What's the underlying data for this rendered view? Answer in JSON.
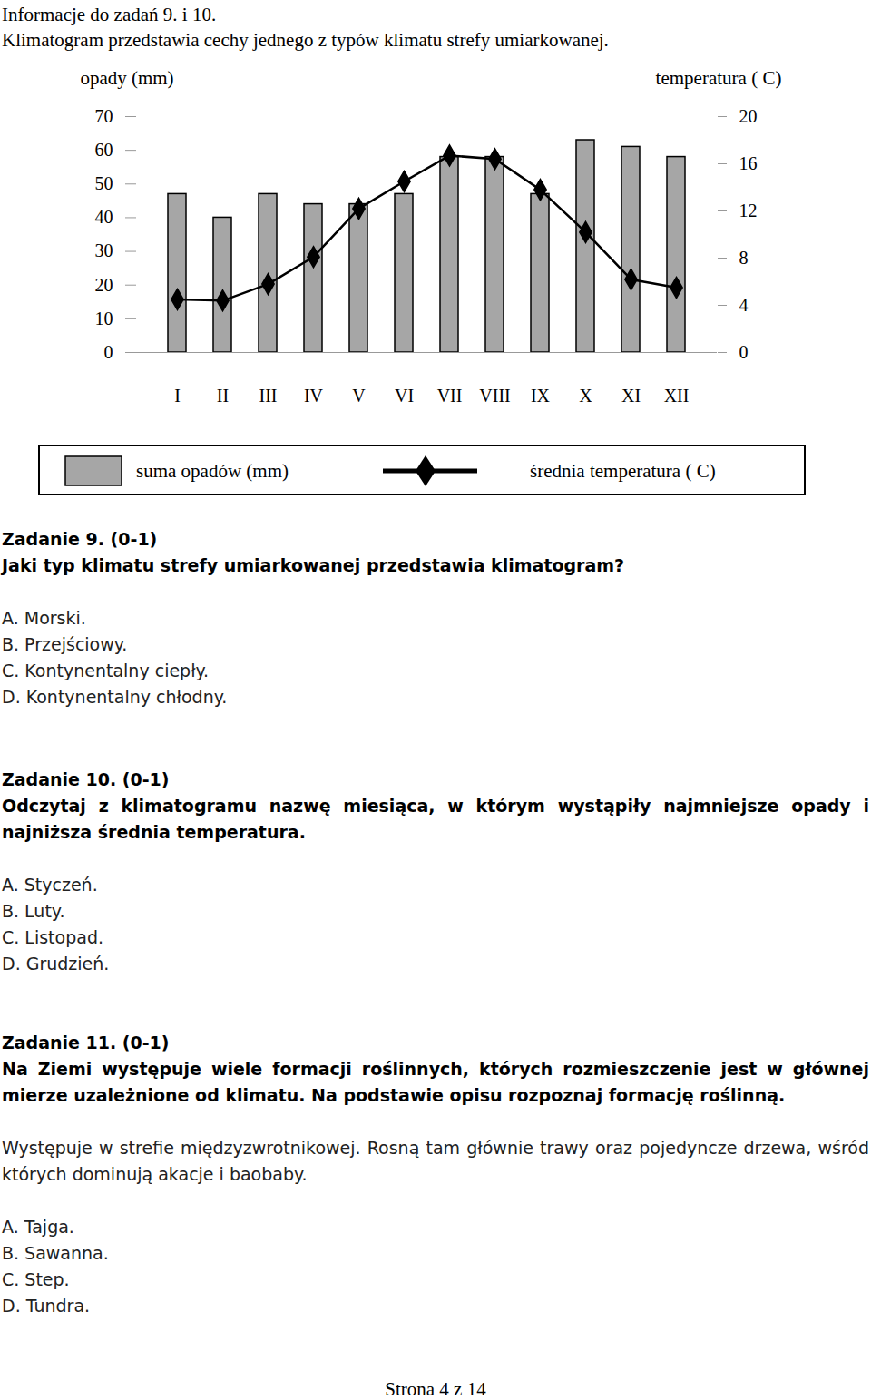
{
  "header": {
    "title": "Informacje do zadań 9. i 10.",
    "text": "Klimatogram przedstawia cechy jednego z typów klimatu strefy umiarkowanej."
  },
  "chart_data": {
    "type": "bar",
    "categories": [
      "I",
      "II",
      "III",
      "IV",
      "V",
      "VI",
      "VII",
      "VIII",
      "IX",
      "X",
      "XI",
      "XII"
    ],
    "series": [
      {
        "name": "suma opadów (mm)",
        "type": "bar",
        "color": "#a6a6a6",
        "values": [
          47,
          40,
          47,
          44,
          44,
          47,
          58,
          58,
          47,
          63,
          61,
          58
        ]
      },
      {
        "name": "średnia temperatura ( C)",
        "type": "line",
        "axis": "y2",
        "color": "#000000",
        "marker": "diamond",
        "values": [
          4.5,
          4.4,
          5.8,
          8.1,
          12.2,
          14.5,
          16.7,
          16.4,
          13.8,
          10.2,
          6.2,
          5.5
        ]
      }
    ],
    "y_label": "opady (mm)",
    "y2_label": "temperatura ( C)",
    "ylim": [
      0,
      70
    ],
    "yticks": [
      0,
      10,
      20,
      30,
      40,
      50,
      60,
      70
    ],
    "y2lim": [
      0,
      20
    ],
    "y2ticks": [
      0,
      4,
      8,
      12,
      16,
      20
    ],
    "legend": "bottom",
    "grid": false
  },
  "tasks": [
    {
      "heading": "Zadanie 9. (0-1)",
      "question": "Jaki typ klimatu strefy umiarkowanej przedstawia klimatogram?",
      "options": [
        "A. Morski.",
        "B. Przejściowy.",
        "C. Kontynentalny ciepły.",
        "D. Kontynentalny chłodny."
      ]
    },
    {
      "heading": "Zadanie 10. (0-1)",
      "question": "Odczytaj z klimatogramu nazwę miesiąca, w którym wystąpiły najmniejsze opady i najniższa średnia temperatura.",
      "options": [
        "A. Styczeń.",
        "B. Luty.",
        "C. Listopad.",
        "D. Grudzień."
      ]
    },
    {
      "heading": "Zadanie 11. (0-1)",
      "question": "Na Ziemi występuje wiele formacji roślinnych, których rozmieszczenie jest w głównej mierze uzależnione od klimatu. Na podstawie opisu rozpoznaj formację roślinną.",
      "description": "Występuje w strefie międzyzwrotnikowej. Rosną tam głównie trawy oraz pojedyncze drzewa, wśród których dominują akacje i baobaby.",
      "options": [
        "A. Tajga.",
        "B. Sawanna.",
        "C. Step.",
        "D. Tundra."
      ]
    }
  ],
  "footer": "Strona 4 z 14"
}
